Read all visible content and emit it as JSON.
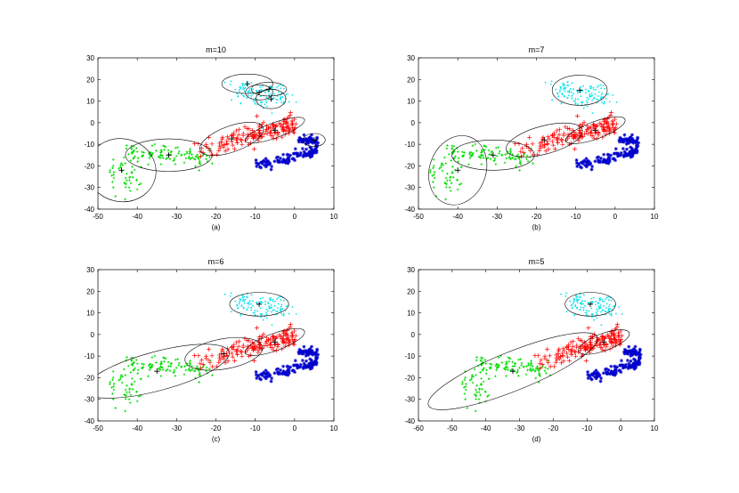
{
  "chart_data": [
    {
      "type": "scatter",
      "title": "m=10",
      "caption": "(a)",
      "xlim": [
        -50,
        10
      ],
      "ylim": [
        -40,
        30
      ],
      "xticks": [
        -50,
        -40,
        -30,
        -20,
        -10,
        0,
        10
      ],
      "yticks": [
        -40,
        -30,
        -20,
        -10,
        0,
        10,
        20,
        30
      ],
      "ellipses": [
        {
          "cx": -44,
          "cy": -22,
          "rx": 8,
          "ry": 16,
          "angle": 78
        },
        {
          "cx": -32,
          "cy": -15,
          "rx": 11,
          "ry": 7.5,
          "angle": 0
        },
        {
          "cx": -16,
          "cy": -7.5,
          "rx": 8.5,
          "ry": 6,
          "angle": 20
        },
        {
          "cx": -5,
          "cy": -3.5,
          "rx": 8,
          "ry": 3.5,
          "angle": 20
        },
        {
          "cx": 5,
          "cy": -8,
          "rx": 2.8,
          "ry": 3,
          "angle": 0
        },
        {
          "cx": -12,
          "cy": 18,
          "rx": 6.5,
          "ry": 4.5,
          "angle": 0
        },
        {
          "cx": -6.5,
          "cy": 15.5,
          "rx": 4.5,
          "ry": 3.2,
          "angle": 0
        },
        {
          "cx": -6,
          "cy": 11,
          "rx": 3.8,
          "ry": 4.5,
          "angle": 0
        },
        {
          "cx": -9,
          "cy": 14,
          "rx": 3.5,
          "ry": 3.5,
          "angle": 0
        }
      ]
    },
    {
      "type": "scatter",
      "title": "m=7",
      "caption": "(b)",
      "xlim": [
        -50,
        10
      ],
      "ylim": [
        -40,
        30
      ],
      "xticks": [
        -50,
        -40,
        -30,
        -20,
        -10,
        0,
        10
      ],
      "yticks": [
        -40,
        -30,
        -20,
        -10,
        0,
        10,
        20,
        30
      ],
      "ellipses": [
        {
          "cx": -40,
          "cy": -22,
          "rx": 9,
          "ry": 13,
          "angle": 70
        },
        {
          "cx": -31,
          "cy": -15,
          "rx": 10.5,
          "ry": 7,
          "angle": 0
        },
        {
          "cx": -18,
          "cy": -8,
          "rx": 10,
          "ry": 6.5,
          "angle": 15
        },
        {
          "cx": -5,
          "cy": -3.5,
          "rx": 8,
          "ry": 4,
          "angle": 20
        },
        {
          "cx": -9,
          "cy": 15,
          "rx": 7,
          "ry": 7,
          "angle": 0
        }
      ]
    },
    {
      "type": "scatter",
      "title": "m=6",
      "caption": "(c)",
      "xlim": [
        -50,
        10
      ],
      "ylim": [
        -40,
        30
      ],
      "xticks": [
        -50,
        -40,
        -30,
        -20,
        -10,
        0,
        10
      ],
      "yticks": [
        -40,
        -30,
        -20,
        -10,
        0,
        10,
        20,
        30
      ],
      "ellipses": [
        {
          "cx": -35,
          "cy": -17,
          "rx": 19,
          "ry": 9,
          "angle": 15
        },
        {
          "cx": -18,
          "cy": -9,
          "rx": 10,
          "ry": 7,
          "angle": 10
        },
        {
          "cx": -5,
          "cy": -3.5,
          "rx": 8,
          "ry": 4,
          "angle": 20
        },
        {
          "cx": -9,
          "cy": 14,
          "rx": 7.5,
          "ry": 5.5,
          "angle": 0
        }
      ]
    },
    {
      "type": "scatter",
      "title": "m=5",
      "caption": "(d)",
      "xlim": [
        -60,
        10
      ],
      "ylim": [
        -40,
        30
      ],
      "xticks": [
        -60,
        -50,
        -40,
        -30,
        -20,
        -10,
        0,
        10
      ],
      "yticks": [
        -40,
        -30,
        -20,
        -10,
        0,
        10,
        20,
        30
      ],
      "ellipses": [
        {
          "cx": -32,
          "cy": -17,
          "rx": 27,
          "ry": 9,
          "angle": 22
        },
        {
          "cx": -5,
          "cy": -3.5,
          "rx": 8,
          "ry": 4,
          "angle": 20
        },
        {
          "cx": -9,
          "cy": 14,
          "rx": 7.5,
          "ry": 5.5,
          "angle": 0
        }
      ]
    }
  ],
  "colors": {
    "cyan": "#00e5ee",
    "red": "#ff0000",
    "green": "#00dd00",
    "blue": "#0000cc",
    "ellipse": "#000000",
    "center": "#000000"
  }
}
